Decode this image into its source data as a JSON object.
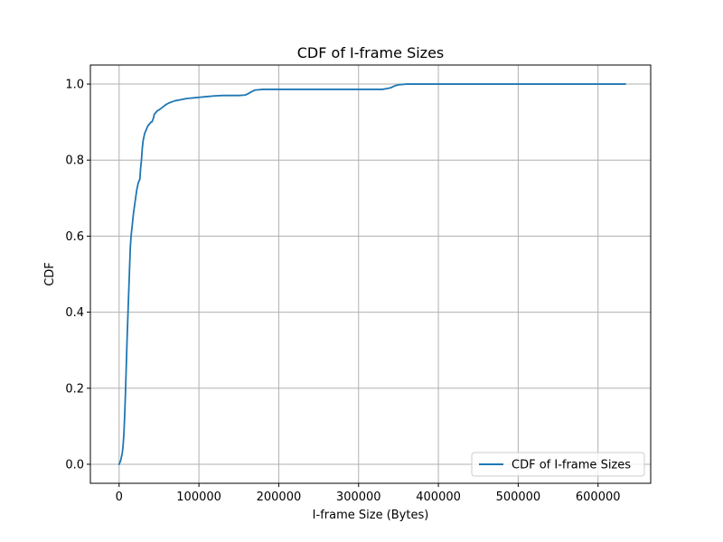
{
  "chart_data": {
    "type": "line",
    "title": "CDF of I-frame Sizes",
    "xlabel": "I-frame Size (Bytes)",
    "ylabel": "CDF",
    "xlim": [
      -36000,
      666000
    ],
    "ylim": [
      -0.05,
      1.05
    ],
    "xticks": [
      0,
      100000,
      200000,
      300000,
      400000,
      500000,
      600000
    ],
    "xtick_labels": [
      "0",
      "100000",
      "200000",
      "300000",
      "400000",
      "500000",
      "600000"
    ],
    "yticks": [
      0.0,
      0.2,
      0.4,
      0.6,
      0.8,
      1.0
    ],
    "ytick_labels": [
      "0.0",
      "0.2",
      "0.4",
      "0.6",
      "0.8",
      "1.0"
    ],
    "grid": true,
    "legend_position": "lower-right",
    "series": [
      {
        "name": "CDF of I-frame Sizes",
        "color": "#1f77b4",
        "x": [
          0,
          2000,
          3000,
          4000,
          5000,
          6000,
          7000,
          8000,
          9000,
          10000,
          11000,
          12000,
          13000,
          14000,
          15000,
          16000,
          17000,
          18000,
          20000,
          22000,
          24000,
          26000,
          27000,
          28000,
          29000,
          30000,
          31000,
          32000,
          34000,
          36000,
          38000,
          40000,
          41000,
          42000,
          43000,
          44000,
          46000,
          48000,
          50000,
          52000,
          55000,
          58000,
          62000,
          66000,
          70000,
          75000,
          80000,
          85000,
          90000,
          95000,
          100000,
          110000,
          120000,
          130000,
          140000,
          150000,
          158000,
          162000,
          166000,
          170000,
          175000,
          180000,
          200000,
          250000,
          300000,
          330000,
          335000,
          340000,
          345000,
          350000,
          355000,
          360000,
          400000,
          500000,
          600000,
          634000
        ],
        "y": [
          0.0,
          0.01,
          0.02,
          0.03,
          0.05,
          0.08,
          0.13,
          0.19,
          0.26,
          0.33,
          0.39,
          0.45,
          0.51,
          0.57,
          0.6,
          0.62,
          0.64,
          0.66,
          0.69,
          0.72,
          0.74,
          0.75,
          0.78,
          0.8,
          0.83,
          0.85,
          0.86,
          0.87,
          0.88,
          0.89,
          0.895,
          0.9,
          0.9,
          0.905,
          0.91,
          0.92,
          0.925,
          0.93,
          0.932,
          0.935,
          0.94,
          0.945,
          0.95,
          0.953,
          0.956,
          0.958,
          0.96,
          0.962,
          0.963,
          0.964,
          0.965,
          0.967,
          0.969,
          0.97,
          0.97,
          0.97,
          0.971,
          0.975,
          0.98,
          0.984,
          0.985,
          0.986,
          0.986,
          0.986,
          0.986,
          0.986,
          0.988,
          0.99,
          0.995,
          0.998,
          0.999,
          1.0,
          1.0,
          1.0,
          1.0,
          1.0
        ]
      }
    ]
  }
}
